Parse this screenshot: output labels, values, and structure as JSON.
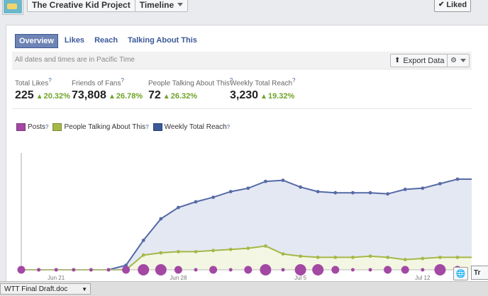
{
  "header": {
    "page_name": "The Creative Kid Project",
    "view_label": "Timeline",
    "liked_label": "Liked",
    "liked_icon": "check-icon"
  },
  "tabs": [
    {
      "label": "Overview",
      "active": true
    },
    {
      "label": "Likes",
      "active": false
    },
    {
      "label": "Reach",
      "active": false
    },
    {
      "label": "Talking About This",
      "active": false
    }
  ],
  "infobar": {
    "note": "All dates and times are in Pacific Time",
    "export_label": "Export Data",
    "export_icon": "export-icon",
    "gear_icon": "gear-icon"
  },
  "stats": [
    {
      "label": "Total Likes",
      "value": "225",
      "change": "20.32%"
    },
    {
      "label": "Friends of Fans",
      "value": "73,808",
      "change": "26.78%"
    },
    {
      "label": "People Talking About This",
      "value": "72",
      "change": "26.32%"
    },
    {
      "label": "Weekly Total Reach",
      "value": "3,230",
      "change": "19.32%"
    }
  ],
  "help_mark": "?",
  "legend": [
    {
      "label": "Posts",
      "color": "#a348a3"
    },
    {
      "label": "People Talking About This",
      "color": "#a5b848"
    },
    {
      "label": "Weekly Total Reach",
      "color": "#3b5998"
    }
  ],
  "chart_data": {
    "type": "line",
    "x_labels": [
      "Jun 21",
      "Jun 28",
      "Jul 5",
      "Jul 12"
    ],
    "x_label_index": [
      2,
      9,
      16,
      23
    ],
    "ylim": [
      0,
      1
    ],
    "series": [
      {
        "name": "Weekly Total Reach",
        "color": "#556aa6",
        "fill": "#e4e8f3",
        "values": [
          0,
          0,
          0,
          0,
          0,
          0,
          0.04,
          0.26,
          0.45,
          0.55,
          0.6,
          0.64,
          0.69,
          0.72,
          0.78,
          0.79,
          0.73,
          0.69,
          0.68,
          0.68,
          0.68,
          0.67,
          0.71,
          0.72,
          0.76,
          0.8,
          0.8,
          0.78
        ]
      },
      {
        "name": "People Talking About This",
        "color": "#a5b848",
        "fill": "#f3f6e3",
        "values": [
          0,
          0,
          0,
          0,
          0,
          0,
          0,
          0.13,
          0.15,
          0.16,
          0.16,
          0.17,
          0.18,
          0.19,
          0.21,
          0.14,
          0.12,
          0.11,
          0.11,
          0.11,
          0.12,
          0.11,
          0.09,
          0.1,
          0.11,
          0.11,
          0.11,
          0.1
        ]
      },
      {
        "name": "Posts",
        "color": "#a348a3",
        "sizes": [
          2,
          1,
          1,
          1,
          1,
          1,
          2,
          3,
          3,
          2,
          1,
          2,
          1,
          2,
          3,
          1,
          3,
          3,
          2,
          1,
          1,
          2,
          2,
          1,
          3,
          2,
          2,
          0
        ]
      }
    ]
  },
  "taskbar": {
    "doc_label": "WTT Final Draft.doc",
    "globe_icon": "globe-icon",
    "tr_label": "Tr"
  }
}
